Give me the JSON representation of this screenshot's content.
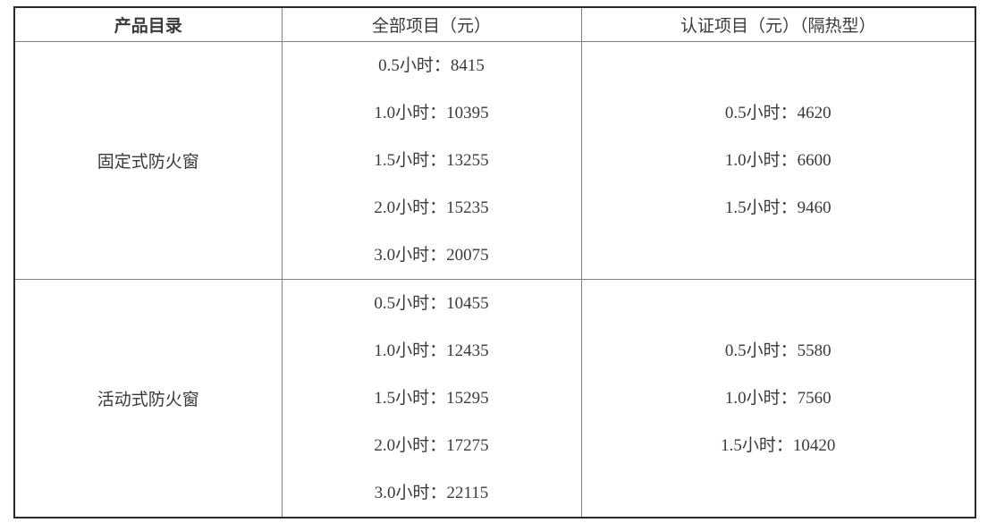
{
  "table": {
    "headers": [
      "产品目录",
      "全部项目（元）",
      "认证项目（元）（隔热型）"
    ],
    "rows": [
      {
        "product": "固定式防火窗",
        "all_items": [
          "0.5小时：8415",
          "1.0小时：10395",
          "1.5小时：13255",
          "2.0小时：15235",
          "3.0小时：20075"
        ],
        "certified_items": [
          "0.5小时：4620",
          "1.0小时：6600",
          "1.5小时：9460"
        ]
      },
      {
        "product": "活动式防火窗",
        "all_items": [
          "0.5小时：10455",
          "1.0小时：12435",
          "1.5小时：15295",
          "2.0小时：17275",
          "3.0小时：22115"
        ],
        "certified_items": [
          "0.5小时：5580",
          "1.0小时：7560",
          "1.5小时：10420"
        ]
      }
    ]
  },
  "colors": {
    "text": "#3a3a3a",
    "outer_border": "#2b2b2b",
    "grid_line": "#808080",
    "background": "#ffffff"
  }
}
